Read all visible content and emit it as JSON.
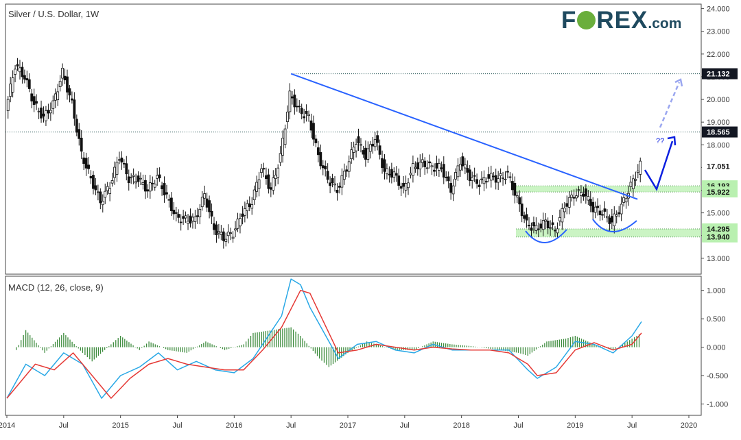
{
  "header": {
    "title": "Silver / U.S. Dollar, 1W"
  },
  "indicator": {
    "title": "MACD (12, 26, close, 9)"
  },
  "logo": {
    "part1": "F",
    "part2": "REX",
    "part3": ".com"
  },
  "annotation": {
    "question": "??"
  },
  "colors": {
    "trendline": "#2962ff",
    "macd": "#29a8e6",
    "signal": "#e53935",
    "hist": "#3d8b3d",
    "zone": "#b9f0b0",
    "arrow": "#0b1fe0",
    "arrow_faded": "#9aa6f0",
    "dark_label": "#131722"
  },
  "chart_data": [
    {
      "type": "candlestick",
      "title": "Silver / U.S. Dollar, 1W",
      "x_ticks": [
        "2014",
        "Jul",
        "2015",
        "Jul",
        "2016",
        "Jul",
        "2017",
        "Jul",
        "2018",
        "Jul",
        "2019",
        "Jul",
        "2020"
      ],
      "y_ticks": [
        "13.000",
        "14.000",
        "15.000",
        "16.000",
        "17.000",
        "18.000",
        "19.000",
        "20.000",
        "21.000",
        "22.000",
        "23.000",
        "24.000"
      ],
      "ylim": [
        12.3,
        24.2
      ],
      "series": [
        {
          "name": "price",
          "points": [
            [
              "2014-01",
              19.5
            ],
            [
              "2014-02",
              21.5
            ],
            [
              "2014-03",
              21.0
            ],
            [
              "2014-04",
              19.8
            ],
            [
              "2014-05",
              19.2
            ],
            [
              "2014-06",
              19.8
            ],
            [
              "2014-07",
              21.2
            ],
            [
              "2014-08",
              19.8
            ],
            [
              "2014-09",
              17.6
            ],
            [
              "2014-10",
              16.5
            ],
            [
              "2014-11",
              15.5
            ],
            [
              "2014-12",
              16.2
            ],
            [
              "2015-01",
              17.5
            ],
            [
              "2015-02",
              16.5
            ],
            [
              "2015-03",
              16.5
            ],
            [
              "2015-04",
              16.0
            ],
            [
              "2015-05",
              16.6
            ],
            [
              "2015-06",
              15.7
            ],
            [
              "2015-07",
              14.8
            ],
            [
              "2015-08",
              14.7
            ],
            [
              "2015-09",
              14.7
            ],
            [
              "2015-10",
              15.8
            ],
            [
              "2015-11",
              14.3
            ],
            [
              "2015-12",
              13.9
            ],
            [
              "2016-01",
              14.1
            ],
            [
              "2016-02",
              15.0
            ],
            [
              "2016-03",
              15.5
            ],
            [
              "2016-04",
              17.0
            ],
            [
              "2016-05",
              16.0
            ],
            [
              "2016-06",
              17.5
            ],
            [
              "2016-07",
              20.2
            ],
            [
              "2016-08",
              19.5
            ],
            [
              "2016-09",
              19.2
            ],
            [
              "2016-10",
              17.5
            ],
            [
              "2016-11",
              16.5
            ],
            [
              "2016-12",
              16.0
            ],
            [
              "2017-01",
              17.0
            ],
            [
              "2017-02",
              18.2
            ],
            [
              "2017-03",
              17.5
            ],
            [
              "2017-04",
              18.3
            ],
            [
              "2017-05",
              16.8
            ],
            [
              "2017-06",
              16.7
            ],
            [
              "2017-07",
              16.0
            ],
            [
              "2017-08",
              17.0
            ],
            [
              "2017-09",
              17.2
            ],
            [
              "2017-10",
              17.0
            ],
            [
              "2017-11",
              17.0
            ],
            [
              "2017-12",
              16.0
            ],
            [
              "2018-01",
              17.3
            ],
            [
              "2018-02",
              16.6
            ],
            [
              "2018-03",
              16.3
            ],
            [
              "2018-04",
              16.6
            ],
            [
              "2018-05",
              16.5
            ],
            [
              "2018-06",
              16.7
            ],
            [
              "2018-07",
              15.6
            ],
            [
              "2018-08",
              14.5
            ],
            [
              "2018-09",
              14.3
            ],
            [
              "2018-10",
              14.6
            ],
            [
              "2018-11",
              14.2
            ],
            [
              "2018-12",
              15.3
            ],
            [
              "2019-01",
              15.8
            ],
            [
              "2019-02",
              15.9
            ],
            [
              "2019-03",
              15.2
            ],
            [
              "2019-04",
              15.0
            ],
            [
              "2019-05",
              14.6
            ],
            [
              "2019-06",
              15.3
            ],
            [
              "2019-07",
              16.2
            ],
            [
              "2019-08",
              17.1
            ]
          ]
        }
      ],
      "trendline": {
        "from": [
          "2016-07",
          21.132
        ],
        "to": [
          "2019-07",
          15.6
        ]
      },
      "horizontal_levels": [
        "21.132",
        "18.565"
      ],
      "zones": [
        {
          "top": "16.193",
          "bottom": "15.922"
        },
        {
          "top": "14.295",
          "bottom": "13.940"
        }
      ],
      "price_labels": [
        "21.132",
        "18.565",
        "17.051",
        "16.193",
        "15.922",
        "14.295",
        "13.940"
      ],
      "annotations": [
        "??"
      ]
    },
    {
      "type": "line",
      "title": "MACD (12, 26, close, 9)",
      "y_ticks": [
        "1.000",
        "0.500",
        "0.000",
        "-0.500",
        "-1.000"
      ],
      "ylim": [
        -1.2,
        1.25
      ],
      "series": [
        {
          "name": "MACD",
          "points": [
            [
              "2014-01",
              -0.9
            ],
            [
              "2014-03",
              -0.3
            ],
            [
              "2014-05",
              -0.5
            ],
            [
              "2014-07",
              -0.1
            ],
            [
              "2014-09",
              -0.3
            ],
            [
              "2014-11",
              -0.9
            ],
            [
              "2015-01",
              -0.5
            ],
            [
              "2015-03",
              -0.35
            ],
            [
              "2015-05",
              -0.1
            ],
            [
              "2015-07",
              -0.4
            ],
            [
              "2015-09",
              -0.25
            ],
            [
              "2015-11",
              -0.4
            ],
            [
              "2016-01",
              -0.45
            ],
            [
              "2016-03",
              -0.2
            ],
            [
              "2016-05",
              0.3
            ],
            [
              "2016-06",
              0.55
            ],
            [
              "2016-07",
              1.2
            ],
            [
              "2016-08",
              1.1
            ],
            [
              "2016-09",
              0.7
            ],
            [
              "2016-11",
              0.1
            ],
            [
              "2016-12",
              -0.2
            ],
            [
              "2017-02",
              0.05
            ],
            [
              "2017-04",
              0.1
            ],
            [
              "2017-06",
              -0.05
            ],
            [
              "2017-08",
              -0.1
            ],
            [
              "2017-10",
              0.05
            ],
            [
              "2017-12",
              -0.05
            ],
            [
              "2018-02",
              -0.05
            ],
            [
              "2018-04",
              -0.05
            ],
            [
              "2018-06",
              -0.05
            ],
            [
              "2018-08",
              -0.4
            ],
            [
              "2018-09",
              -0.55
            ],
            [
              "2018-11",
              -0.35
            ],
            [
              "2019-01",
              0.1
            ],
            [
              "2019-03",
              0.05
            ],
            [
              "2019-05",
              -0.1
            ],
            [
              "2019-07",
              0.2
            ],
            [
              "2019-08",
              0.45
            ]
          ]
        },
        {
          "name": "Signal",
          "points": [
            [
              "2014-01",
              -0.9
            ],
            [
              "2014-04",
              -0.3
            ],
            [
              "2014-06",
              -0.4
            ],
            [
              "2014-08",
              -0.1
            ],
            [
              "2014-10",
              -0.5
            ],
            [
              "2014-12",
              -0.9
            ],
            [
              "2015-02",
              -0.55
            ],
            [
              "2015-04",
              -0.3
            ],
            [
              "2015-06",
              -0.2
            ],
            [
              "2015-08",
              -0.3
            ],
            [
              "2015-10",
              -0.35
            ],
            [
              "2015-12",
              -0.4
            ],
            [
              "2016-02",
              -0.4
            ],
            [
              "2016-04",
              -0.05
            ],
            [
              "2016-06",
              0.35
            ],
            [
              "2016-08",
              1.0
            ],
            [
              "2016-09",
              0.95
            ],
            [
              "2016-10",
              0.6
            ],
            [
              "2016-12",
              -0.1
            ],
            [
              "2017-02",
              -0.05
            ],
            [
              "2017-04",
              0.05
            ],
            [
              "2017-06",
              0.0
            ],
            [
              "2017-08",
              -0.05
            ],
            [
              "2017-10",
              0.0
            ],
            [
              "2017-12",
              -0.03
            ],
            [
              "2018-02",
              -0.05
            ],
            [
              "2018-04",
              -0.05
            ],
            [
              "2018-06",
              -0.1
            ],
            [
              "2018-08",
              -0.3
            ],
            [
              "2018-09",
              -0.5
            ],
            [
              "2018-11",
              -0.45
            ],
            [
              "2019-01",
              -0.05
            ],
            [
              "2019-03",
              0.08
            ],
            [
              "2019-05",
              -0.05
            ],
            [
              "2019-07",
              0.05
            ],
            [
              "2019-08",
              0.25
            ]
          ]
        }
      ],
      "histogram": [
        [
          "2014-02",
          -0.05
        ],
        [
          "2014-03",
          0.3
        ],
        [
          "2014-05",
          -0.1
        ],
        [
          "2014-07",
          0.25
        ],
        [
          "2014-09",
          -0.1
        ],
        [
          "2014-10",
          -0.25
        ],
        [
          "2014-12",
          0.05
        ],
        [
          "2015-01",
          0.2
        ],
        [
          "2015-03",
          -0.05
        ],
        [
          "2015-04",
          0.1
        ],
        [
          "2015-06",
          -0.05
        ],
        [
          "2015-08",
          -0.1
        ],
        [
          "2015-10",
          0.1
        ],
        [
          "2015-12",
          -0.05
        ],
        [
          "2016-02",
          0.05
        ],
        [
          "2016-03",
          0.25
        ],
        [
          "2016-05",
          0.3
        ],
        [
          "2016-07",
          0.35
        ],
        [
          "2016-08",
          0.2
        ],
        [
          "2016-10",
          -0.2
        ],
        [
          "2016-11",
          -0.35
        ],
        [
          "2017-01",
          -0.1
        ],
        [
          "2017-03",
          0.1
        ],
        [
          "2017-04",
          0.05
        ],
        [
          "2017-06",
          -0.05
        ],
        [
          "2017-08",
          -0.05
        ],
        [
          "2017-10",
          0.1
        ],
        [
          "2017-12",
          0.05
        ],
        [
          "2018-02",
          0.02
        ],
        [
          "2018-05",
          -0.05
        ],
        [
          "2018-07",
          -0.1
        ],
        [
          "2018-08",
          -0.15
        ],
        [
          "2018-10",
          0.1
        ],
        [
          "2018-12",
          0.15
        ],
        [
          "2019-01",
          0.2
        ],
        [
          "2019-03",
          0.05
        ],
        [
          "2019-05",
          -0.05
        ],
        [
          "2019-06",
          0.05
        ],
        [
          "2019-07",
          0.15
        ],
        [
          "2019-08",
          0.25
        ]
      ]
    }
  ]
}
